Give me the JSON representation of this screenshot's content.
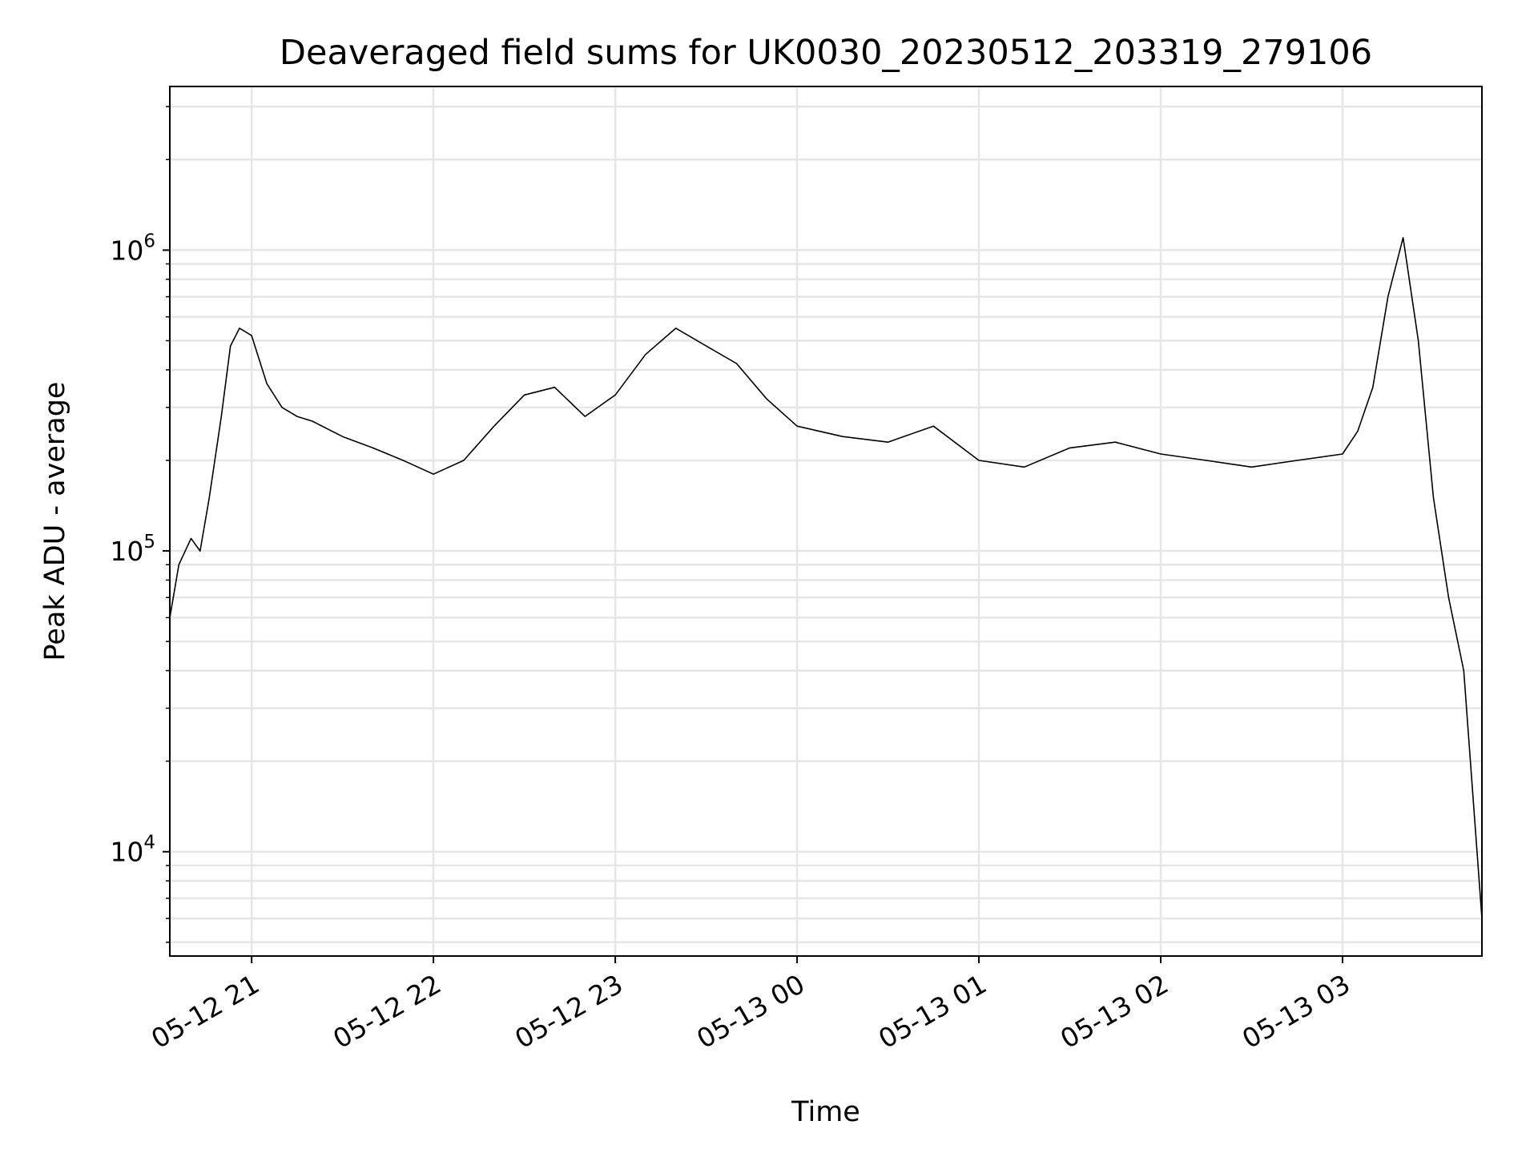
{
  "chart_data": {
    "type": "line",
    "title": "Deaveraged field sums for UK0030_20230512_203319_279106",
    "xlabel": "Time",
    "ylabel": "Peak ADU - average",
    "yscale": "log",
    "ylim": [
      4500,
      3500000
    ],
    "xlim": [
      "2023-05-12 20:33",
      "2023-05-13 03:46"
    ],
    "grid": true,
    "line_color": "#000000",
    "grid_color": "#e6e6e6",
    "x_ticks": [
      {
        "value": "2023-05-12 21:00",
        "label": "05-12 21"
      },
      {
        "value": "2023-05-12 22:00",
        "label": "05-12 22"
      },
      {
        "value": "2023-05-12 23:00",
        "label": "05-12 23"
      },
      {
        "value": "2023-05-13 00:00",
        "label": "05-13 00"
      },
      {
        "value": "2023-05-13 01:00",
        "label": "05-13 01"
      },
      {
        "value": "2023-05-13 02:00",
        "label": "05-13 02"
      },
      {
        "value": "2023-05-13 03:00",
        "label": "05-13 03"
      }
    ],
    "y_ticks": [
      {
        "value": 10000,
        "base": "10",
        "exp": "4"
      },
      {
        "value": 100000,
        "base": "10",
        "exp": "5"
      },
      {
        "value": 1000000,
        "base": "10",
        "exp": "6"
      }
    ],
    "series": [
      {
        "x": [
          "2023-05-12 20:33",
          "2023-05-12 20:36",
          "2023-05-12 20:40",
          "2023-05-12 20:43",
          "2023-05-12 20:46",
          "2023-05-12 20:50",
          "2023-05-12 20:53",
          "2023-05-12 20:56",
          "2023-05-12 21:00",
          "2023-05-12 21:05",
          "2023-05-12 21:10",
          "2023-05-12 21:15",
          "2023-05-12 21:20",
          "2023-05-12 21:30",
          "2023-05-12 21:40",
          "2023-05-12 21:50",
          "2023-05-12 22:00",
          "2023-05-12 22:10",
          "2023-05-12 22:20",
          "2023-05-12 22:30",
          "2023-05-12 22:40",
          "2023-05-12 22:50",
          "2023-05-12 23:00",
          "2023-05-12 23:10",
          "2023-05-12 23:20",
          "2023-05-12 23:30",
          "2023-05-12 23:40",
          "2023-05-12 23:50",
          "2023-05-13 00:00",
          "2023-05-13 00:15",
          "2023-05-13 00:30",
          "2023-05-13 00:45",
          "2023-05-13 01:00",
          "2023-05-13 01:15",
          "2023-05-13 01:30",
          "2023-05-13 01:45",
          "2023-05-13 02:00",
          "2023-05-13 02:15",
          "2023-05-13 02:30",
          "2023-05-13 02:45",
          "2023-05-13 03:00",
          "2023-05-13 03:05",
          "2023-05-13 03:10",
          "2023-05-13 03:15",
          "2023-05-13 03:20",
          "2023-05-13 03:25",
          "2023-05-13 03:30",
          "2023-05-13 03:35",
          "2023-05-13 03:40",
          "2023-05-13 03:46"
        ],
        "y": [
          60000,
          90000,
          110000,
          100000,
          150000,
          280000,
          480000,
          550000,
          520000,
          360000,
          300000,
          280000,
          270000,
          240000,
          220000,
          200000,
          180000,
          200000,
          260000,
          330000,
          350000,
          280000,
          330000,
          450000,
          550000,
          480000,
          420000,
          320000,
          260000,
          240000,
          230000,
          260000,
          200000,
          190000,
          220000,
          230000,
          210000,
          200000,
          190000,
          200000,
          210000,
          250000,
          350000,
          700000,
          1100000,
          500000,
          150000,
          70000,
          40000,
          6000
        ]
      }
    ]
  }
}
